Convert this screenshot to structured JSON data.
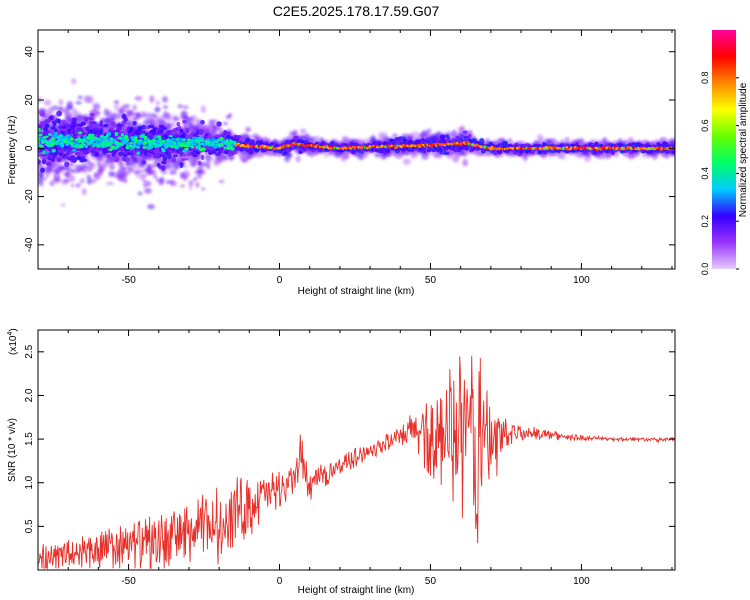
{
  "title": "C2E5.2025.178.17.59.G07",
  "chart_data": [
    {
      "type": "heatmap",
      "xlabel": "Height of straight line (km)",
      "ylabel": "Frequency (Hz)",
      "xlim": [
        -80,
        131
      ],
      "ylim": [
        -50,
        49
      ],
      "xticks": [
        -50,
        0,
        50,
        100
      ],
      "xtick_labels": [
        "-50",
        "0",
        "50",
        "100"
      ],
      "yticks": [
        -40,
        -20,
        0,
        20,
        40
      ],
      "ytick_labels": [
        "-40",
        "-20",
        "0",
        "20",
        "40"
      ],
      "grid": false,
      "ridge": [
        {
          "x": -80,
          "y": 3,
          "spread": 6
        },
        {
          "x": -60,
          "y": 3,
          "spread": 5
        },
        {
          "x": -40,
          "y": 2,
          "spread": 5
        },
        {
          "x": -20,
          "y": 2,
          "spread": 3
        },
        {
          "x": -10,
          "y": 1,
          "spread": 1.5
        },
        {
          "x": 0,
          "y": 0,
          "spread": 1
        },
        {
          "x": 5,
          "y": 2,
          "spread": 2
        },
        {
          "x": 10,
          "y": 1,
          "spread": 1
        },
        {
          "x": 20,
          "y": 0,
          "spread": 1
        },
        {
          "x": 62,
          "y": 2,
          "spread": 2
        },
        {
          "x": 70,
          "y": 0,
          "spread": 1
        },
        {
          "x": 131,
          "y": 0,
          "spread": 1
        }
      ],
      "colorbar": {
        "label": "Normalized spectral amplitude",
        "range": [
          0,
          1
        ],
        "ticks": [
          0.0,
          0.2,
          0.4,
          0.6,
          0.8
        ],
        "tick_labels": [
          "0.0",
          "0.2",
          "0.4",
          "0.6",
          "0.8"
        ],
        "colormap": [
          "#e6ccff",
          "#9933ff",
          "#3300ff",
          "#00ccff",
          "#00ff66",
          "#66ff00",
          "#ffff00",
          "#ff8800",
          "#ff0000",
          "#ff0099"
        ]
      }
    },
    {
      "type": "line",
      "xlabel": "Height of straight line (km)",
      "ylabel": "SNR (10 * v/v)",
      "y_multiplier_label": "(x10",
      "y_multiplier_exp": "4",
      "y_multiplier_close": ")",
      "xlim": [
        -80,
        131
      ],
      "ylim": [
        0,
        2.75
      ],
      "xticks": [
        -50,
        0,
        50,
        100
      ],
      "xtick_labels": [
        "-50",
        "0",
        "50",
        "100"
      ],
      "yticks": [
        0.5,
        1.0,
        1.5,
        2.0,
        2.5
      ],
      "ytick_labels": [
        "0.5",
        "1.0",
        "1.5",
        "2.0",
        "2.5"
      ],
      "grid": false,
      "series": [
        {
          "color": "#e8302a",
          "x": [
            -80,
            -75,
            -70,
            -65,
            -60,
            -55,
            -50,
            -45,
            -40,
            -35,
            -30,
            -25,
            -20,
            -15,
            -10,
            -5,
            0,
            5,
            7,
            10,
            15,
            20,
            25,
            30,
            35,
            40,
            45,
            50,
            55,
            60,
            65,
            70,
            75,
            80,
            85,
            90,
            95,
            100,
            105,
            110,
            115,
            120,
            125,
            131
          ],
          "y": [
            0.15,
            0.15,
            0.18,
            0.2,
            0.22,
            0.25,
            0.28,
            0.3,
            0.33,
            0.38,
            0.42,
            0.48,
            0.55,
            0.65,
            0.75,
            0.85,
            0.95,
            1.05,
            1.3,
            0.95,
            1.1,
            1.2,
            1.3,
            1.38,
            1.45,
            1.52,
            1.6,
            1.62,
            1.65,
            1.6,
            1.55,
            1.5,
            1.6,
            1.58,
            1.57,
            1.55,
            1.53,
            1.52,
            1.51,
            1.5,
            1.5,
            1.5,
            1.49,
            1.5
          ],
          "noise": [
            0.15,
            0.15,
            0.2,
            0.22,
            0.25,
            0.25,
            0.28,
            0.3,
            0.3,
            0.32,
            0.35,
            0.38,
            0.4,
            0.4,
            0.35,
            0.25,
            0.18,
            0.2,
            0.3,
            0.15,
            0.12,
            0.1,
            0.1,
            0.08,
            0.1,
            0.12,
            0.25,
            0.45,
            0.6,
            0.8,
            1.1,
            0.55,
            0.15,
            0.08,
            0.06,
            0.05,
            0.04,
            0.03,
            0.02,
            0.02,
            0.02,
            0.02,
            0.02,
            0.02
          ]
        }
      ]
    }
  ]
}
